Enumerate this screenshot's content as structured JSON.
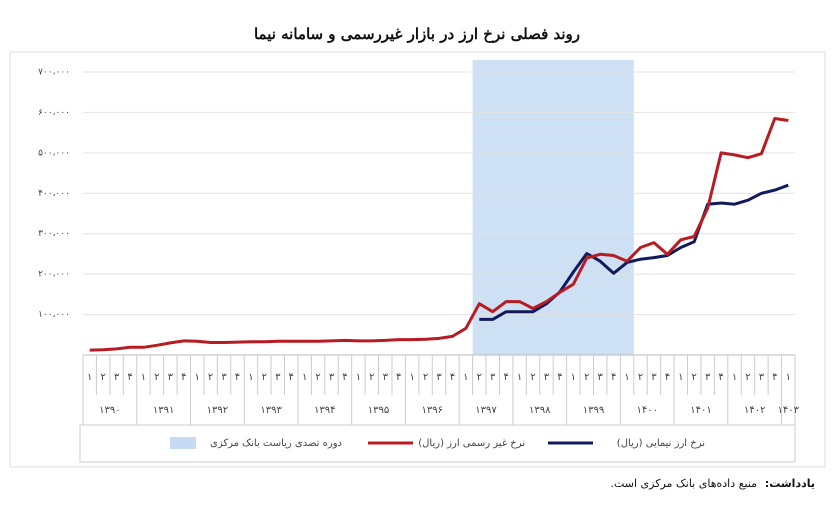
{
  "chart_data": {
    "type": "line",
    "title": "روند فصلی نرخ ارز در بازار غیررسمی و سامانه نیما",
    "categories": [
      "۱",
      "۲",
      "۳",
      "۴",
      "۱",
      "۲",
      "۳",
      "۴",
      "۱",
      "۲",
      "۳",
      "۴",
      "۱",
      "۲",
      "۳",
      "۴",
      "۱",
      "۲",
      "۳",
      "۴",
      "۱",
      "۲",
      "۳",
      "۴",
      "۱",
      "۲",
      "۳",
      "۴",
      "۱",
      "۲",
      "۳",
      "۴",
      "۱",
      "۲",
      "۳",
      "۴",
      "۱",
      "۲",
      "۳",
      "۴",
      "۱",
      "۲",
      "۳",
      "۴",
      "۱",
      "۲",
      "۳",
      "۴",
      "۱",
      "۲",
      "۳",
      "۴",
      "۱"
    ],
    "years": [
      "۱۳۹۰",
      "۱۳۹۱",
      "۱۳۹۲",
      "۱۳۹۳",
      "۱۳۹۴",
      "۱۳۹۵",
      "۱۳۹۶",
      "۱۳۹۷",
      "۱۳۹۸",
      "۱۳۹۹",
      "۱۴۰۰",
      "۱۴۰۱",
      "۱۴۰۲",
      "۱۴۰۳"
    ],
    "series": [
      {
        "name": "نرخ ارز نیمایی (ریال)",
        "color": "#111a5c",
        "values": [
          null,
          null,
          null,
          null,
          null,
          null,
          null,
          null,
          null,
          null,
          null,
          null,
          null,
          null,
          null,
          null,
          null,
          null,
          null,
          null,
          null,
          null,
          null,
          null,
          null,
          null,
          null,
          null,
          null,
          88000,
          88000,
          107000,
          107000,
          107000,
          127000,
          156000,
          205000,
          251000,
          232000,
          202000,
          229000,
          237000,
          241000,
          246000,
          266000,
          280000,
          373000,
          376000,
          373000,
          383000,
          400000,
          408000,
          420000
        ]
      },
      {
        "name": "نرخ غیر رسمی ارز (ریال)",
        "color": "#b81c22",
        "values": [
          12000,
          13000,
          15000,
          19000,
          19000,
          24000,
          30000,
          35000,
          34000,
          31000,
          31000,
          32000,
          33000,
          33000,
          34000,
          34000,
          34000,
          34000,
          35000,
          36000,
          35000,
          35000,
          36000,
          38000,
          38000,
          39000,
          41000,
          46000,
          66000,
          127000,
          107000,
          132000,
          132000,
          115000,
          132000,
          155000,
          175000,
          240000,
          249000,
          246000,
          232000,
          266000,
          278000,
          249000,
          285000,
          293000,
          363000,
          500000,
          495000,
          488000,
          498000,
          585000,
          580000
        ]
      }
    ],
    "shade": {
      "name": "دوره تصدی ریاست بانک مرکزی",
      "from": 29,
      "to": 40,
      "color": "#c6dbf2"
    },
    "ylim": [
      0,
      700000
    ],
    "yticks": [
      {
        "value": 100000,
        "label": "۱۰۰،۰۰۰"
      },
      {
        "value": 200000,
        "label": "۲۰۰،۰۰۰"
      },
      {
        "value": 300000,
        "label": "۳۰۰،۰۰۰"
      },
      {
        "value": 400000,
        "label": "۴۰۰،۰۰۰"
      },
      {
        "value": 500000,
        "label": "۵۰۰،۰۰۰"
      },
      {
        "value": 600000,
        "label": "۶۰۰،۰۰۰"
      },
      {
        "value": 700000,
        "label": "۷۰۰،۰۰۰"
      }
    ],
    "grid": true,
    "legend": "bottom",
    "note_label": "یادداشت:",
    "note_text": "منبع داده‌های بانک مرکزی است."
  }
}
